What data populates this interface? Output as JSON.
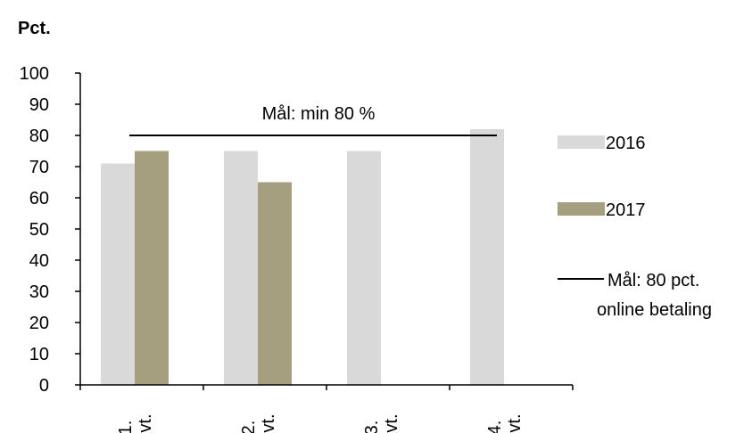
{
  "chart_data": {
    "type": "bar",
    "title": "",
    "ylabel": "Pct.",
    "xlabel": "",
    "categories": [
      "1.\nkvt.",
      "2.\nkvt.",
      "3.\nkvt.",
      "4.\nkvt."
    ],
    "series": [
      {
        "name": "2016",
        "values": [
          71,
          75,
          75,
          82
        ],
        "color": "#d9d9d9"
      },
      {
        "name": "2017",
        "values": [
          75,
          65,
          null,
          null
        ],
        "color": "#a59e7f"
      }
    ],
    "target_line": {
      "name": "Mål: 80 pct. online betaling",
      "value": 80,
      "label": "Mål: min 80 %",
      "color": "#000000"
    },
    "ylim": [
      0,
      100
    ],
    "yticks": [
      0,
      10,
      20,
      30,
      40,
      50,
      60,
      70,
      80,
      90,
      100
    ],
    "grid": false,
    "legend_position": "right"
  }
}
